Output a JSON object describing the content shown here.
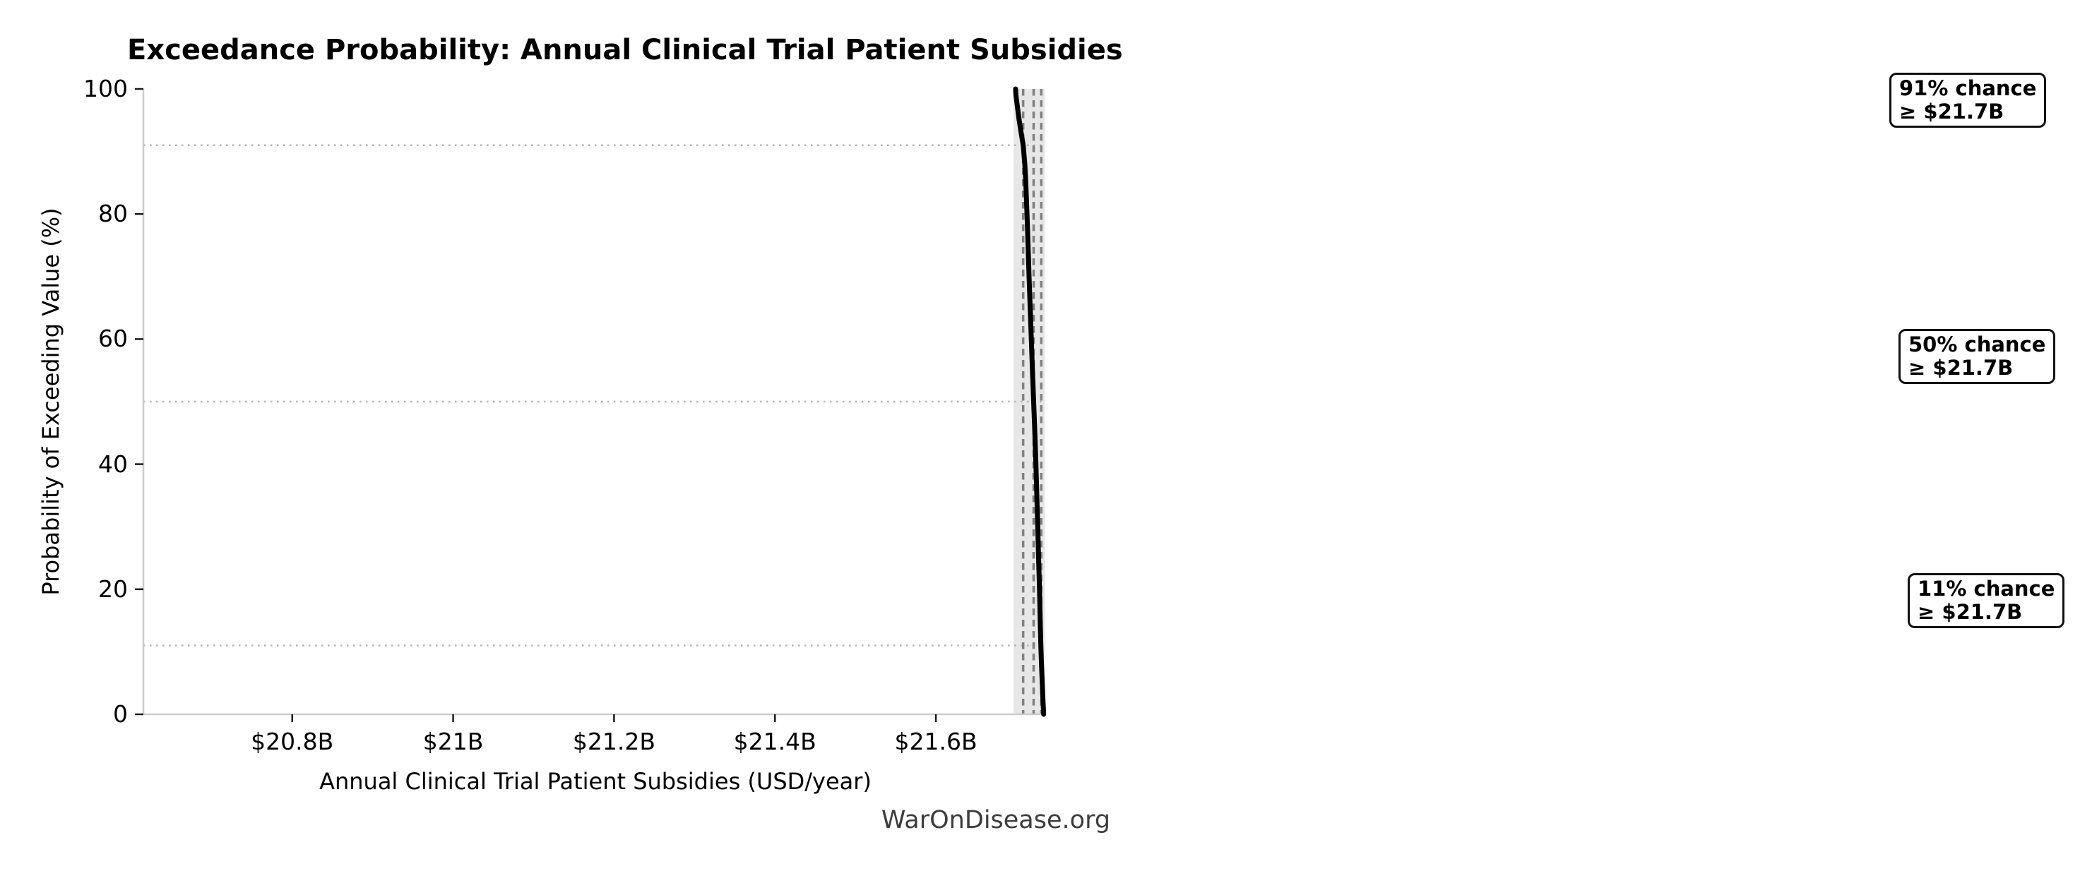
{
  "watermark": "WarOnDisease.org",
  "chart_data": {
    "type": "line",
    "subtype": "exceedance-probability-curve",
    "title": "Exceedance Probability: Annual Clinical Trial Patient Subsidies",
    "xlabel": "Annual Clinical Trial Patient Subsidies (USD/year)",
    "ylabel": "Probability of Exceeding Value (%)",
    "xlim": [
      20.615,
      21.736
    ],
    "ylim": [
      0,
      100
    ],
    "x_ticks": [
      {
        "value": 20.8,
        "label": "$20.8B"
      },
      {
        "value": 21.0,
        "label": "$21B"
      },
      {
        "value": 21.2,
        "label": "$21.2B"
      },
      {
        "value": 21.4,
        "label": "$21.4B"
      },
      {
        "value": 21.6,
        "label": "$21.6B"
      }
    ],
    "y_ticks": [
      {
        "value": 0,
        "label": "0"
      },
      {
        "value": 20,
        "label": "20"
      },
      {
        "value": 40,
        "label": "40"
      },
      {
        "value": 60,
        "label": "60"
      },
      {
        "value": 80,
        "label": "80"
      },
      {
        "value": 100,
        "label": "100"
      }
    ],
    "series": [
      {
        "name": "exceedance-curve",
        "probability_pct": [
          100,
          99,
          97,
          95,
          93,
          91,
          88,
          85,
          80,
          75,
          70,
          65,
          60,
          55,
          50,
          45,
          40,
          35,
          30,
          25,
          20,
          15,
          11,
          8,
          5,
          2,
          0
        ],
        "value_usd_billions": [
          21.699,
          21.6995,
          21.7015,
          21.7035,
          21.706,
          21.7085,
          21.7105,
          21.7118,
          21.7133,
          21.7146,
          21.7158,
          21.7172,
          21.7186,
          21.72,
          21.7215,
          21.723,
          21.7243,
          21.7255,
          21.7266,
          21.7277,
          21.7288,
          21.7297,
          21.7305,
          21.7313,
          21.7322,
          21.7332,
          21.734
        ]
      }
    ],
    "reference_hlines_pct": [
      91,
      50,
      11
    ],
    "reference_vlines_usd_billions": [
      21.7085,
      21.7215,
      21.731
    ],
    "shaded_band_usd_billions": [
      21.6965,
      21.7355
    ],
    "annotations": [
      {
        "probability_pct": 91,
        "line1": "91% chance",
        "line2": "≥ $21.7B"
      },
      {
        "probability_pct": 50,
        "line1": "50% chance",
        "line2": "≥ $21.7B"
      },
      {
        "probability_pct": 11,
        "line1": "11% chance",
        "line2": "≥ $21.7B"
      }
    ],
    "grid": "dotted horizontal lines at 91%, 50%, 11%; dashed vertical lines at matching values; light band over data range",
    "legend": null,
    "colors": {
      "curve": "#000000",
      "band": "#e7e7e7",
      "dashed_vline": "#808080",
      "dotted_hline": "#b3b3b3",
      "spine": "#cccccc",
      "tick": "#1a1a1a",
      "watermark": "#3d3d3d",
      "annotation_border": "#111111",
      "background": "#ffffff"
    }
  }
}
